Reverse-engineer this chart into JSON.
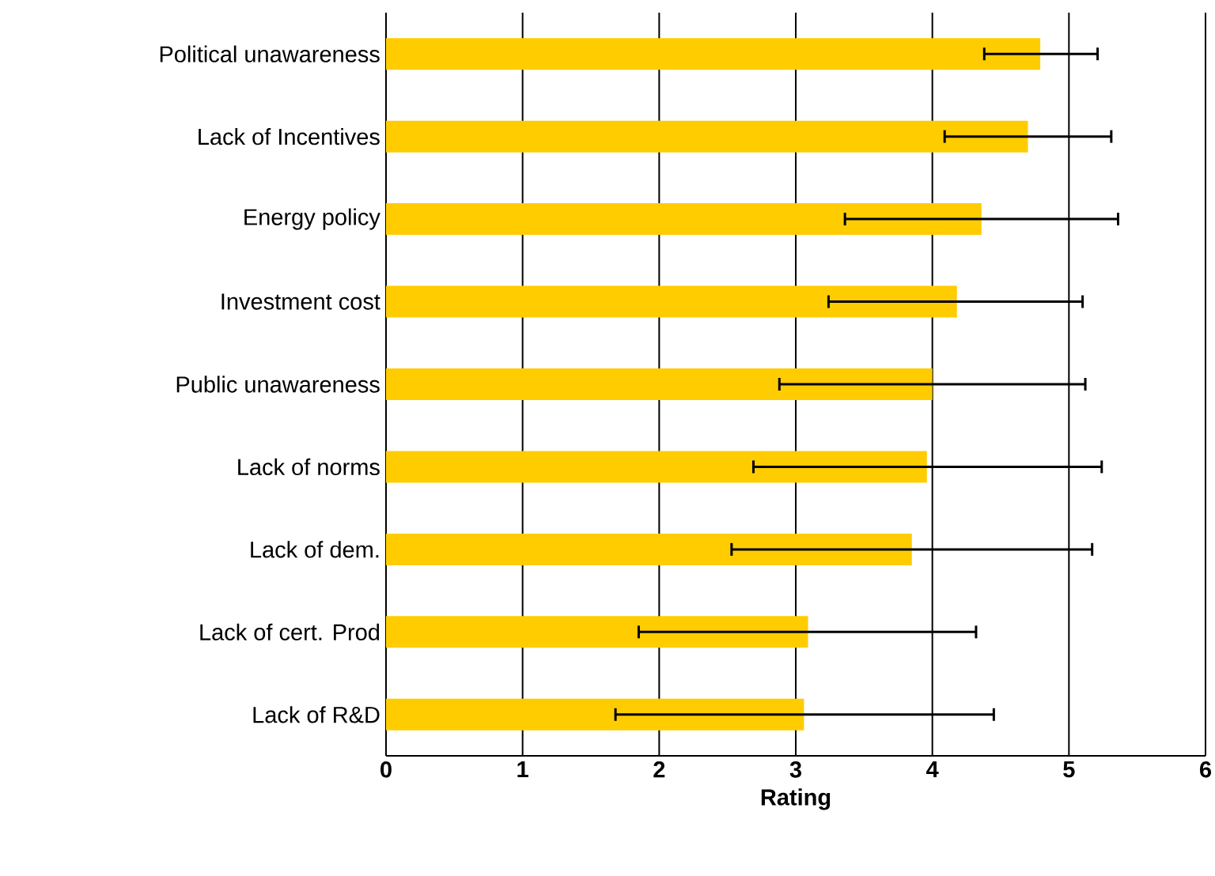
{
  "chart_data": {
    "type": "bar",
    "orientation": "horizontal",
    "xlabel": "Rating",
    "categories": [
      "Political unawareness",
      "Lack of Incentives",
      "Energy policy",
      "Investment cost",
      "Public unawareness",
      "Lack of norms",
      "Lack of dem.",
      "Lack of cert. Prod",
      "Lack of R&D"
    ],
    "values": [
      4.79,
      4.7,
      4.36,
      4.18,
      4.0,
      3.96,
      3.85,
      3.09,
      3.06
    ],
    "errors": [
      [
        4.38,
        5.21
      ],
      [
        4.09,
        5.31
      ],
      [
        3.36,
        5.36
      ],
      [
        3.24,
        5.1
      ],
      [
        2.88,
        5.12
      ],
      [
        2.69,
        5.24
      ],
      [
        2.53,
        5.17
      ],
      [
        1.85,
        4.32
      ],
      [
        1.68,
        4.45
      ]
    ],
    "color": "#ffcc00",
    "xlim": [
      0,
      6
    ],
    "xticks": [
      0,
      1,
      2,
      3,
      4,
      5,
      6
    ],
    "grid": "x"
  }
}
